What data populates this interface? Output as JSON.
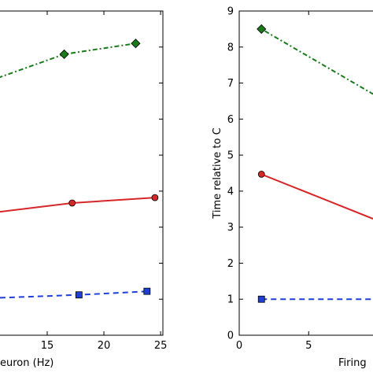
{
  "chart_data": [
    {
      "type": "line",
      "xlabel": "euron (Hz)",
      "xlim": [
        10.7,
        25.2
      ],
      "ylim": [
        0,
        9
      ],
      "x_ticks": [
        15,
        20,
        25
      ],
      "x_tick_labels": [
        "15",
        "20",
        "25"
      ],
      "series": [
        {
          "style": "dotted",
          "color": "#1a7a1a",
          "marker": "diamond",
          "x": [
            8.5,
            16.5,
            22.8
          ],
          "y": [
            6.9,
            7.8,
            8.1
          ]
        },
        {
          "style": "solid",
          "color": "#d62728",
          "marker": "circle",
          "x": [
            7.5,
            17.2,
            24.5
          ],
          "y": [
            3.3,
            3.67,
            3.82
          ]
        },
        {
          "style": "dashed",
          "color": "#1f3fd6",
          "marker": "square",
          "x": [
            7.5,
            17.8,
            23.8
          ],
          "y": [
            1.0,
            1.12,
            1.22
          ]
        }
      ]
    },
    {
      "type": "line",
      "ylabel": "Time relative to C",
      "xlabel": "Firing",
      "xlim": [
        0,
        10.2
      ],
      "ylim": [
        0,
        9
      ],
      "x_ticks": [
        0,
        5
      ],
      "x_tick_labels": [
        "0",
        "5"
      ],
      "y_ticks": [
        0,
        1,
        2,
        3,
        4,
        5,
        6,
        7,
        8,
        9
      ],
      "y_tick_labels": [
        "0",
        "1",
        "2",
        "3",
        "4",
        "5",
        "6",
        "7",
        "8",
        "9"
      ],
      "series": [
        {
          "style": "dotted",
          "color": "#1a7a1a",
          "marker": "diamond",
          "x": [
            1.6,
            10.5
          ],
          "y": [
            8.5,
            6.5
          ]
        },
        {
          "style": "solid",
          "color": "#d62728",
          "marker": "circle",
          "x": [
            1.6,
            10.5
          ],
          "y": [
            4.47,
            3.1
          ]
        },
        {
          "style": "dashed",
          "color": "#1f3fd6",
          "marker": "square",
          "x": [
            1.6,
            10.5
          ],
          "y": [
            1.0,
            1.0
          ]
        }
      ]
    }
  ]
}
